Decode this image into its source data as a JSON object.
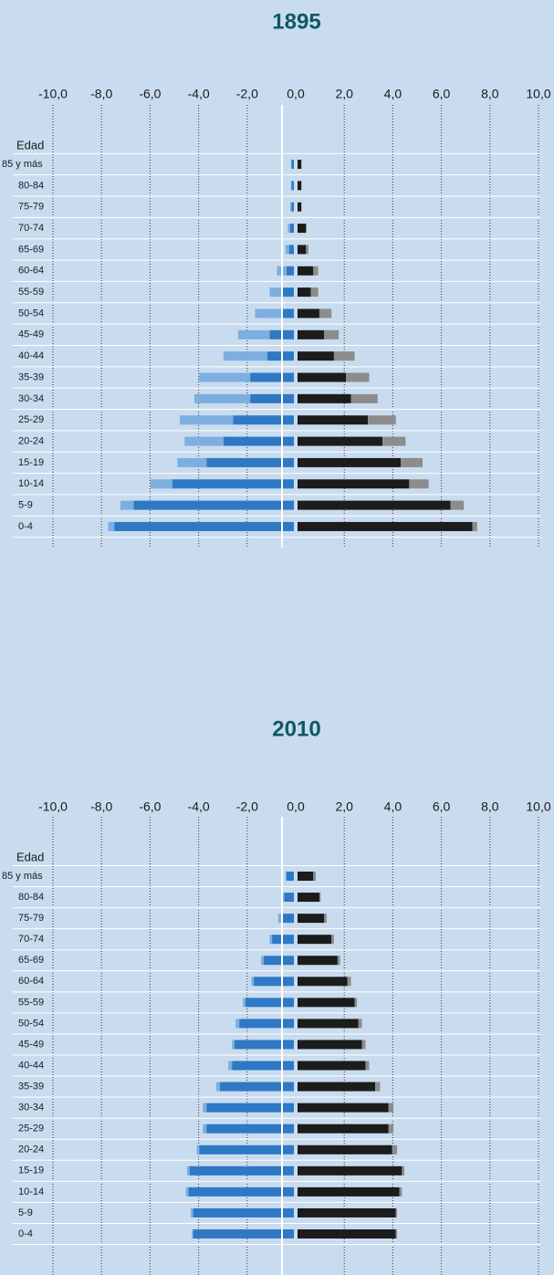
{
  "chart_data": [
    {
      "type": "bar",
      "title": "1895",
      "y_label": "Edad",
      "categories": [
        "85 y más",
        "80-84",
        "75-79",
        "70-74",
        "65-69",
        "60-64",
        "55-59",
        "50-54",
        "45-49",
        "40-44",
        "35-39",
        "30-34",
        "25-29",
        "20-24",
        "15-19",
        "10-14",
        "5-9",
        "0-4"
      ],
      "xlim": [
        -10,
        10
      ],
      "xticks": [
        {
          "value": -10,
          "label": "-10,0"
        },
        {
          "value": -8,
          "label": "-8,0"
        },
        {
          "value": -6,
          "label": "-6,0"
        },
        {
          "value": -4,
          "label": "-4,0"
        },
        {
          "value": -2,
          "label": "-2,0"
        },
        {
          "value": 0,
          "label": "0,0"
        },
        {
          "value": 2,
          "label": "2,0"
        },
        {
          "value": 4,
          "label": "4,0"
        },
        {
          "value": 6,
          "label": "6,0"
        },
        {
          "value": 8,
          "label": "8,0"
        },
        {
          "value": 10,
          "label": "10,0"
        }
      ],
      "series": [
        {
          "side": "left",
          "color": "#2f78c4",
          "values": [
            0.1,
            0.1,
            0.1,
            0.15,
            0.2,
            0.3,
            0.5,
            0.5,
            1.0,
            1.1,
            1.8,
            1.8,
            2.5,
            2.9,
            3.6,
            5.0,
            6.6,
            7.4
          ]
        },
        {
          "side": "left",
          "color": "#7daee0",
          "values": [
            0.02,
            0.02,
            0.05,
            0.1,
            0.15,
            0.4,
            0.5,
            1.1,
            1.3,
            1.8,
            2.1,
            2.3,
            2.2,
            1.6,
            1.2,
            0.9,
            0.55,
            0.25
          ]
        },
        {
          "side": "right",
          "color": "#1c1c1c",
          "values": [
            0.15,
            0.15,
            0.15,
            0.35,
            0.35,
            0.65,
            0.55,
            0.9,
            1.1,
            1.5,
            2.0,
            2.2,
            2.9,
            3.5,
            4.25,
            4.6,
            6.3,
            7.2
          ]
        },
        {
          "side": "right",
          "color": "#8c8c8c",
          "values": [
            0.02,
            0.02,
            0.02,
            0.02,
            0.1,
            0.2,
            0.3,
            0.5,
            0.6,
            0.85,
            0.95,
            1.1,
            1.15,
            0.95,
            0.9,
            0.8,
            0.55,
            0.2
          ]
        }
      ]
    },
    {
      "type": "bar",
      "title": "2010",
      "y_label": "Edad",
      "categories": [
        "85 y más",
        "80-84",
        "75-79",
        "70-74",
        "65-69",
        "60-64",
        "55-59",
        "50-54",
        "45-49",
        "40-44",
        "35-39",
        "30-34",
        "25-29",
        "20-24",
        "15-19",
        "10-14",
        "5-9",
        "0-4"
      ],
      "xlim": [
        -10,
        10
      ],
      "xticks": [
        {
          "value": -10,
          "label": "-10,0"
        },
        {
          "value": -8,
          "label": "-8,0"
        },
        {
          "value": -6,
          "label": "-6,0"
        },
        {
          "value": -4,
          "label": "-4,0"
        },
        {
          "value": -2,
          "label": "-2,0"
        },
        {
          "value": 0,
          "label": "0,0"
        },
        {
          "value": 2,
          "label": "2,0"
        },
        {
          "value": 4,
          "label": "4,0"
        },
        {
          "value": 6,
          "label": "6,0"
        },
        {
          "value": 8,
          "label": "8,0"
        },
        {
          "value": 10,
          "label": "10,0"
        }
      ],
      "series": [
        {
          "side": "left",
          "color": "#2f78c4",
          "values": [
            0.3,
            0.4,
            0.5,
            0.9,
            1.25,
            1.65,
            2.0,
            2.25,
            2.45,
            2.55,
            3.05,
            3.6,
            3.6,
            3.9,
            4.3,
            4.35,
            4.15,
            4.15
          ]
        },
        {
          "side": "left",
          "color": "#7daee0",
          "values": [
            0.05,
            0.1,
            0.15,
            0.1,
            0.1,
            0.1,
            0.1,
            0.15,
            0.1,
            0.15,
            0.15,
            0.15,
            0.15,
            0.1,
            0.1,
            0.1,
            0.1,
            0.05
          ]
        },
        {
          "side": "right",
          "color": "#1c1c1c",
          "values": [
            0.65,
            0.9,
            1.1,
            1.4,
            1.65,
            2.05,
            2.35,
            2.5,
            2.65,
            2.8,
            3.2,
            3.75,
            3.75,
            3.9,
            4.3,
            4.2,
            4.05,
            4.05
          ]
        },
        {
          "side": "right",
          "color": "#8c8c8c",
          "values": [
            0.1,
            0.05,
            0.1,
            0.1,
            0.1,
            0.15,
            0.1,
            0.15,
            0.15,
            0.15,
            0.2,
            0.2,
            0.2,
            0.2,
            0.1,
            0.1,
            0.05,
            0.05
          ]
        }
      ]
    }
  ]
}
